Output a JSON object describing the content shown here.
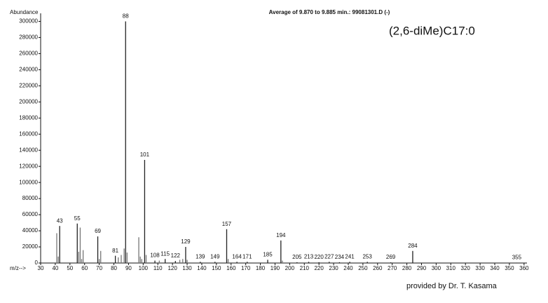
{
  "chart_data": {
    "type": "spectrum",
    "title": "Average of 9.870 to 9.885 min.: 99081301.D (-)",
    "compound": "(2,6-diMe)C17:0",
    "y_label": "Abundance",
    "x_label": "m/z-->",
    "credit": "provided by Dr. T. Kasama",
    "xlim": [
      30,
      362
    ],
    "ylim": [
      0,
      310000
    ],
    "xticks": [
      30,
      40,
      50,
      60,
      70,
      80,
      90,
      100,
      110,
      120,
      130,
      140,
      150,
      160,
      170,
      180,
      190,
      200,
      210,
      220,
      230,
      240,
      250,
      260,
      270,
      280,
      290,
      300,
      310,
      320,
      330,
      340,
      350,
      360
    ],
    "yticks": [
      0,
      20000,
      40000,
      60000,
      80000,
      100000,
      120000,
      140000,
      160000,
      180000,
      200000,
      220000,
      240000,
      260000,
      280000,
      300000
    ],
    "series": [
      {
        "color": "#222",
        "labels": true,
        "x": [
          43,
          55,
          69,
          81,
          88,
          101,
          108,
          115,
          122,
          129,
          139,
          149,
          157,
          164,
          171,
          185,
          194,
          205,
          213,
          220,
          227,
          234,
          241,
          253,
          269,
          284,
          355
        ],
        "values": [
          46000,
          49000,
          33000,
          9000,
          300000,
          128000,
          3000,
          5000,
          2500,
          20000,
          1500,
          1500,
          42000,
          1500,
          1500,
          4000,
          28000,
          1000,
          1500,
          1000,
          1500,
          1000,
          1500,
          1500,
          800,
          15000,
          500
        ]
      },
      {
        "color": "#777",
        "labels": false,
        "x": [
          41,
          42,
          56,
          57,
          58,
          59,
          70,
          71,
          83,
          85,
          87,
          89,
          97,
          98,
          99,
          102,
          111,
          125,
          127,
          130,
          158,
          195
        ],
        "values": [
          37000,
          8000,
          14000,
          44000,
          5000,
          16000,
          5000,
          15000,
          7000,
          10000,
          18000,
          13000,
          32000,
          8000,
          5000,
          10000,
          3000,
          4000,
          5000,
          4000,
          5000,
          3000
        ]
      }
    ]
  }
}
